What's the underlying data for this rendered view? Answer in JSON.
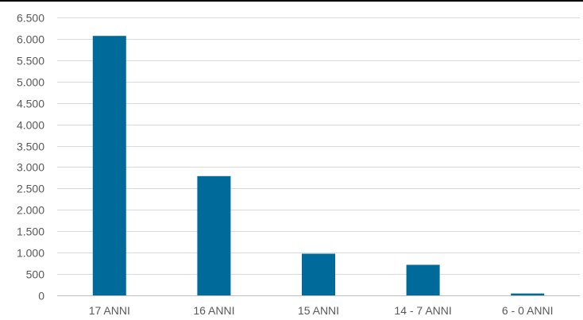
{
  "colors": {
    "bar": "#006b9a",
    "grid": "#d9d9d9",
    "text": "#595959"
  },
  "chart_data": {
    "type": "bar",
    "title": "",
    "xlabel": "",
    "ylabel": "",
    "categories": [
      "17 ANNI",
      "16 ANNI",
      "15 ANNI",
      "14 - 7 ANNI",
      "6 - 0 ANNI"
    ],
    "values": [
      6070,
      2790,
      975,
      715,
      45
    ],
    "ylim": [
      0,
      6500
    ],
    "y_ticks": [
      {
        "value": 0,
        "label": "0"
      },
      {
        "value": 500,
        "label": "500"
      },
      {
        "value": 1000,
        "label": "1.000"
      },
      {
        "value": 1500,
        "label": "1.500"
      },
      {
        "value": 2000,
        "label": "2.000"
      },
      {
        "value": 2500,
        "label": "2.500"
      },
      {
        "value": 3000,
        "label": "3.000"
      },
      {
        "value": 3500,
        "label": "3.500"
      },
      {
        "value": 4000,
        "label": "4.000"
      },
      {
        "value": 4500,
        "label": "4.500"
      },
      {
        "value": 5000,
        "label": "5.000"
      },
      {
        "value": 5500,
        "label": "5.500"
      },
      {
        "value": 6000,
        "label": "6.000"
      },
      {
        "value": 6500,
        "label": "6.500"
      }
    ],
    "grid": true,
    "legend": "none"
  }
}
